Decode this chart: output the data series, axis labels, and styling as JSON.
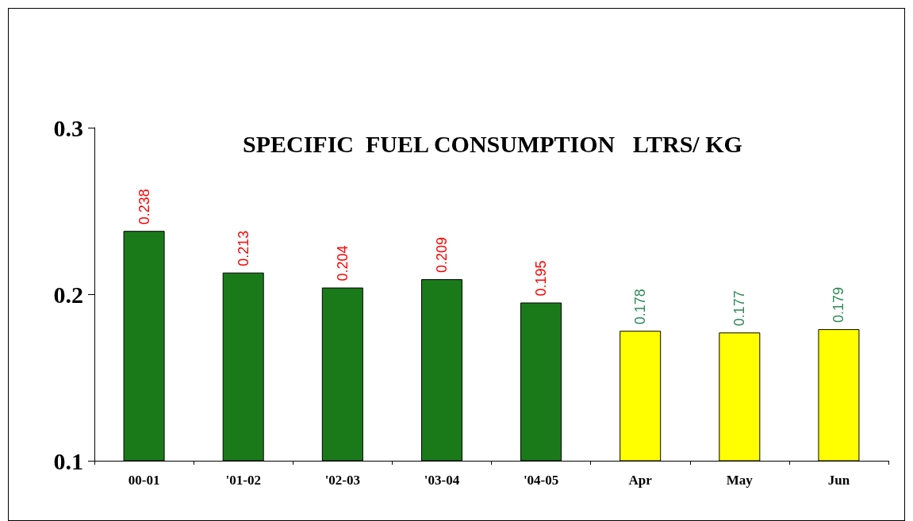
{
  "chart_data": {
    "type": "bar",
    "title": "SPECIFIC  FUEL CONSUMPTION   LTRS/ KG",
    "categories": [
      "00-01",
      "'01-02",
      "'02-03",
      "'03-04",
      "'04-05",
      "Apr",
      "May",
      "Jun"
    ],
    "values": [
      0.238,
      0.213,
      0.204,
      0.209,
      0.195,
      0.178,
      0.177,
      0.179
    ],
    "colors": [
      "#1a7a1a",
      "#1a7a1a",
      "#1a7a1a",
      "#1a7a1a",
      "#1a7a1a",
      "#ffff00",
      "#ffff00",
      "#ffff00"
    ],
    "ylim": [
      0.1,
      0.3
    ],
    "yticks": [
      0.1,
      0.2,
      0.3
    ],
    "data_labels": true,
    "grid": false
  }
}
